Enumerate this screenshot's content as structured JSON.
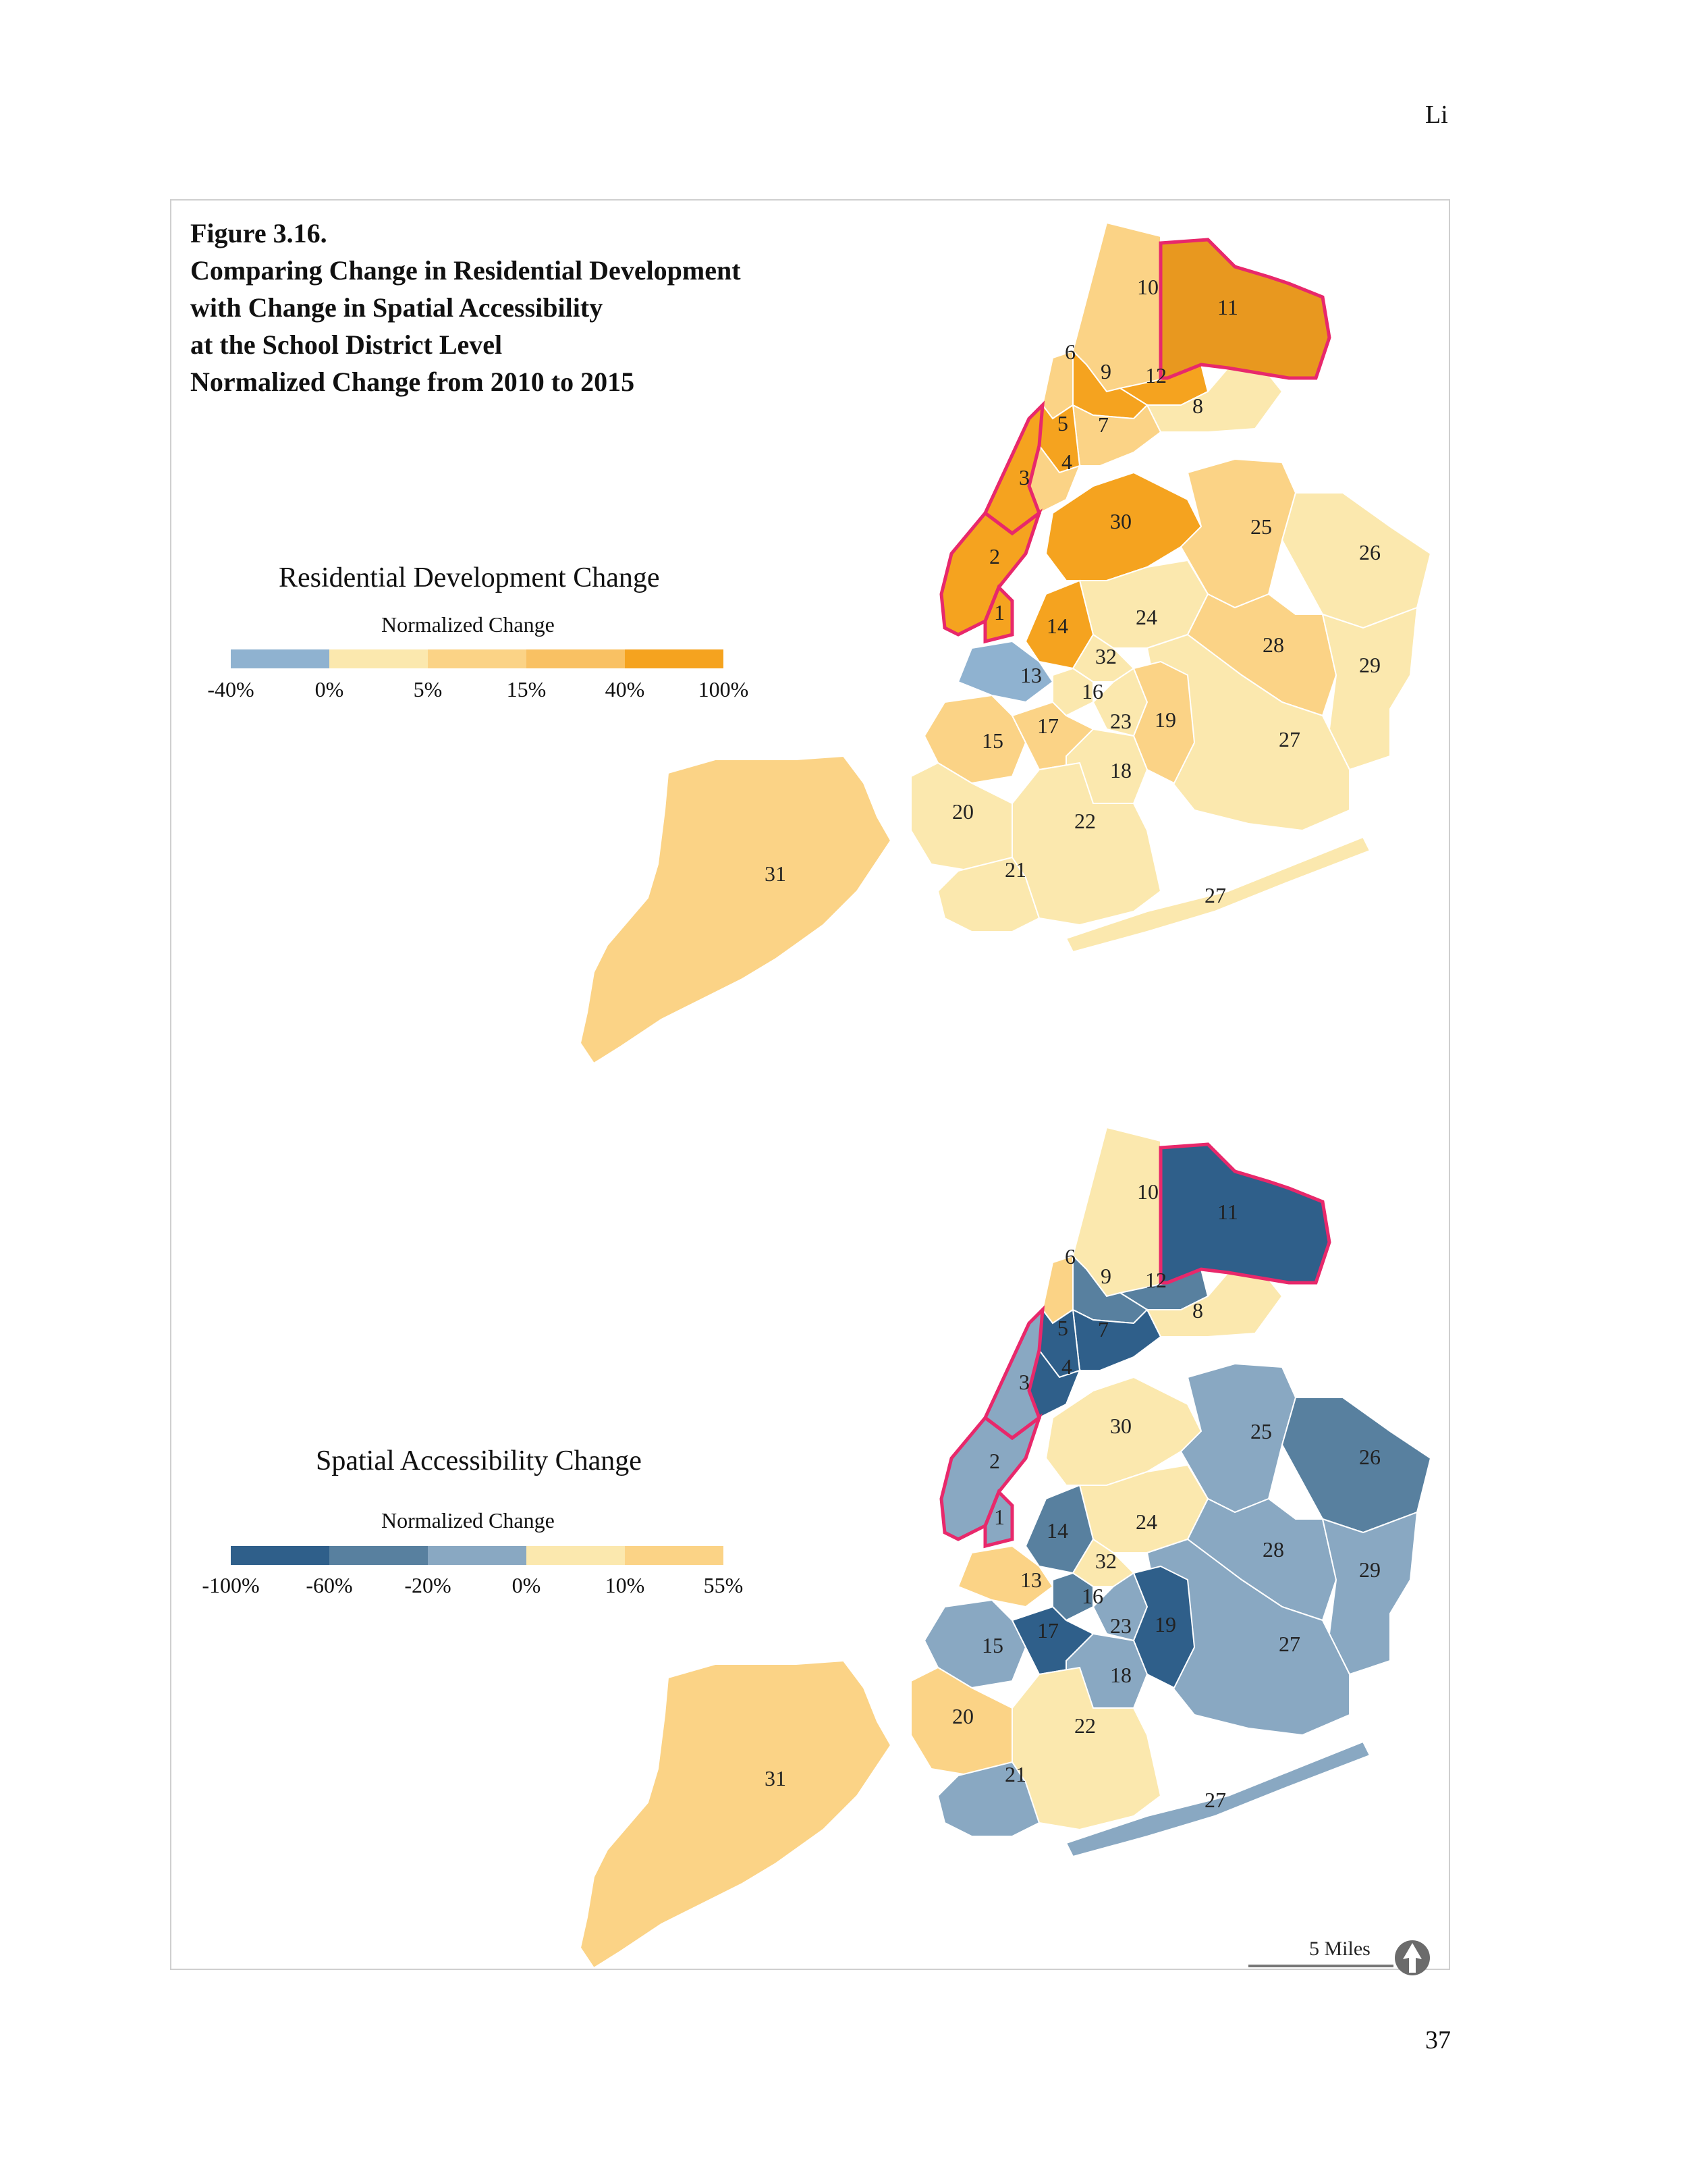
{
  "header": {
    "author": "Li",
    "page_number": "37"
  },
  "figure": {
    "title_lines": [
      "Figure 3.16.",
      "Comparing Change in Residential Development",
      "with Change in Spatial Accessibility",
      "at the School District Level",
      "Normalized Change from  2010 to 2015"
    ]
  },
  "legend_residential": {
    "title": "Residential Development Change",
    "subtitle": "Normalized Change",
    "ticks": [
      "-40%",
      "0%",
      "5%",
      "15%",
      "40%",
      "100%"
    ],
    "colors": [
      "#8fb2d0",
      "#fbe8ae",
      "#fbd386",
      "#f9c163",
      "#f5a31f"
    ]
  },
  "legend_accessibility": {
    "title": "Spatial Accessibility Change",
    "subtitle": "Normalized Change",
    "ticks": [
      "-100%",
      "-60%",
      "-20%",
      "0%",
      "10%",
      "55%"
    ],
    "colors": [
      "#2f5f8a",
      "#58809f",
      "#89a8c2",
      "#fbe8ae",
      "#fbd386"
    ]
  },
  "scale": {
    "label": "5 Miles",
    "icon": "north-arrow-icon"
  },
  "highlight_color": "#e8286b",
  "districts": {
    "residential": {
      "1": "#f5a31f",
      "2": "#f5a31f",
      "3": "#f5a31f",
      "4": "#fbd386",
      "5": "#f5a31f",
      "6": "#fbd386",
      "7": "#fbd386",
      "8": "#fbe8ae",
      "9": "#f5a31f",
      "10": "#fbd386",
      "11": "#e8981f",
      "12": "#f5a31f",
      "13": "#8fb2d0",
      "14": "#f5a31f",
      "15": "#fbd386",
      "16": "#fbe8ae",
      "17": "#fbd386",
      "18": "#fbe8ae",
      "19": "#fbd386",
      "20": "#fbe8ae",
      "21": "#fbe8ae",
      "22": "#fbe8ae",
      "23": "#fbe8ae",
      "24": "#fbe8ae",
      "25": "#fbd386",
      "26": "#fbe8ae",
      "27": "#fbe8ae",
      "28": "#fbd386",
      "29": "#fbe8ae",
      "30": "#f5a31f",
      "31": "#fbd386",
      "32": "#fbe8ae"
    },
    "accessibility": {
      "1": "#89a8c2",
      "2": "#89a8c2",
      "3": "#89a8c2",
      "4": "#2f5f8a",
      "5": "#2f5f8a",
      "6": "#fbd386",
      "7": "#2f5f8a",
      "8": "#fbe8ae",
      "9": "#58809f",
      "10": "#fbe8ae",
      "11": "#2f5f8a",
      "12": "#58809f",
      "13": "#fbd386",
      "14": "#58809f",
      "15": "#89a8c2",
      "16": "#58809f",
      "17": "#2f5f8a",
      "18": "#89a8c2",
      "19": "#2f5f8a",
      "20": "#fbd386",
      "21": "#89a8c2",
      "22": "#fbe8ae",
      "23": "#89a8c2",
      "24": "#fbe8ae",
      "25": "#89a8c2",
      "26": "#58809f",
      "27": "#89a8c2",
      "28": "#89a8c2",
      "29": "#89a8c2",
      "30": "#fbe8ae",
      "31": "#fbd386",
      "32": "#fbe8ae"
    }
  }
}
